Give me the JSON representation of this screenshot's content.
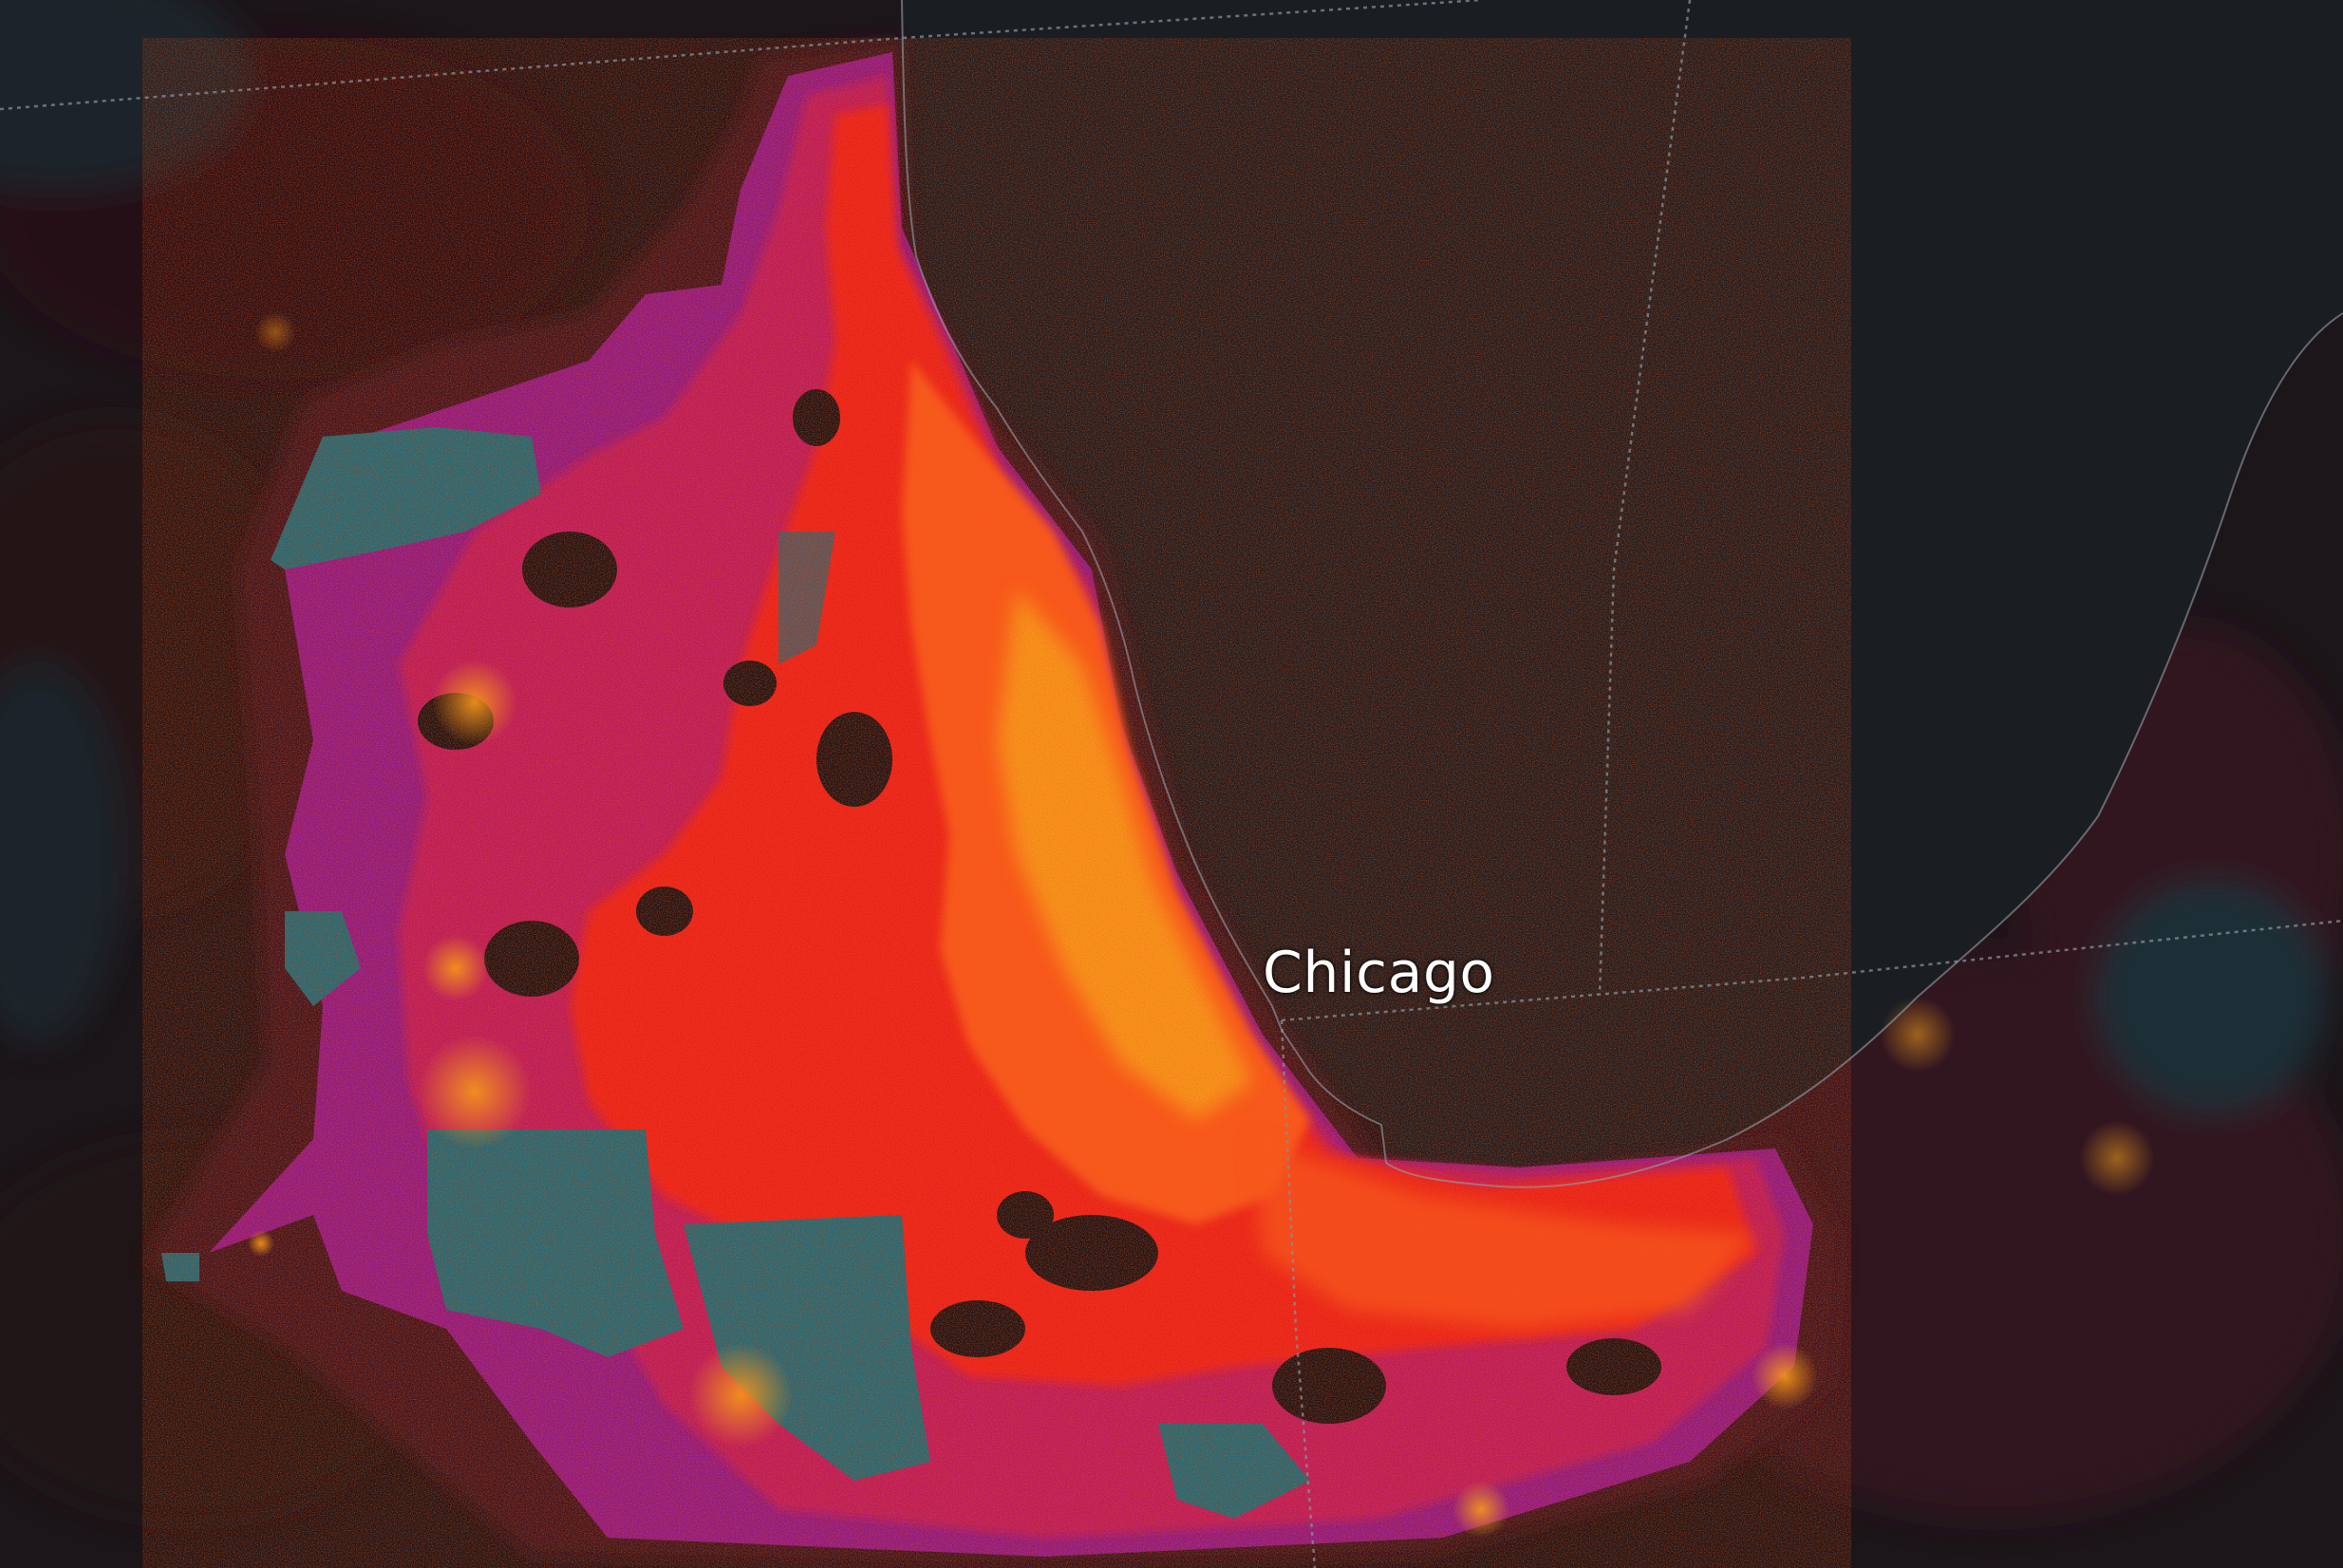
{
  "map": {
    "city_label": "Chicago",
    "colors": {
      "lake": "#1a1d22",
      "land_background": "#1c1519",
      "land_dark_red": "#3a1520",
      "teal_class": "#1d6a78",
      "purple_class": "#8a1a86",
      "magenta_class": "#b81e5e",
      "red_class": "#e8241c",
      "orange_class": "#f7581a",
      "yellow_class": "#f6a31c",
      "border_line": "#8a8f96"
    }
  }
}
